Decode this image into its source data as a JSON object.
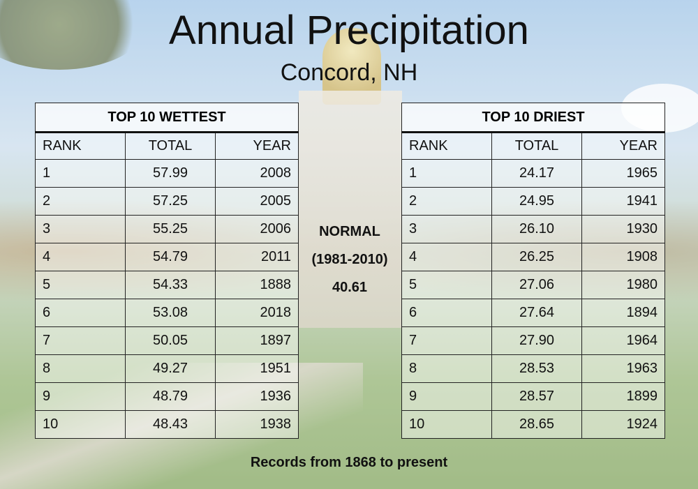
{
  "title": "Annual Precipitation",
  "subtitle": "Concord, NH",
  "wettest": {
    "caption": "TOP 10 WETTEST",
    "headers": [
      "RANK",
      "TOTAL",
      "YEAR"
    ],
    "rows": [
      [
        "1",
        "57.99",
        "2008"
      ],
      [
        "2",
        "57.25",
        "2005"
      ],
      [
        "3",
        "55.25",
        "2006"
      ],
      [
        "4",
        "54.79",
        "2011"
      ],
      [
        "5",
        "54.33",
        "1888"
      ],
      [
        "6",
        "53.08",
        "2018"
      ],
      [
        "7",
        "50.05",
        "1897"
      ],
      [
        "8",
        "49.27",
        "1951"
      ],
      [
        "9",
        "48.79",
        "1936"
      ],
      [
        "10",
        "48.43",
        "1938"
      ]
    ]
  },
  "driest": {
    "caption": "TOP 10 DRIEST",
    "headers": [
      "RANK",
      "TOTAL",
      "YEAR"
    ],
    "rows": [
      [
        "1",
        "24.17",
        "1965"
      ],
      [
        "2",
        "24.95",
        "1941"
      ],
      [
        "3",
        "26.10",
        "1930"
      ],
      [
        "4",
        "26.25",
        "1908"
      ],
      [
        "5",
        "27.06",
        "1980"
      ],
      [
        "6",
        "27.64",
        "1894"
      ],
      [
        "7",
        "27.90",
        "1964"
      ],
      [
        "8",
        "28.53",
        "1963"
      ],
      [
        "9",
        "28.57",
        "1899"
      ],
      [
        "10",
        "28.65",
        "1924"
      ]
    ]
  },
  "normal": {
    "label": "NORMAL",
    "period": "(1981-2010)",
    "value": "40.61"
  },
  "footnote": "Records from 1868 to present"
}
